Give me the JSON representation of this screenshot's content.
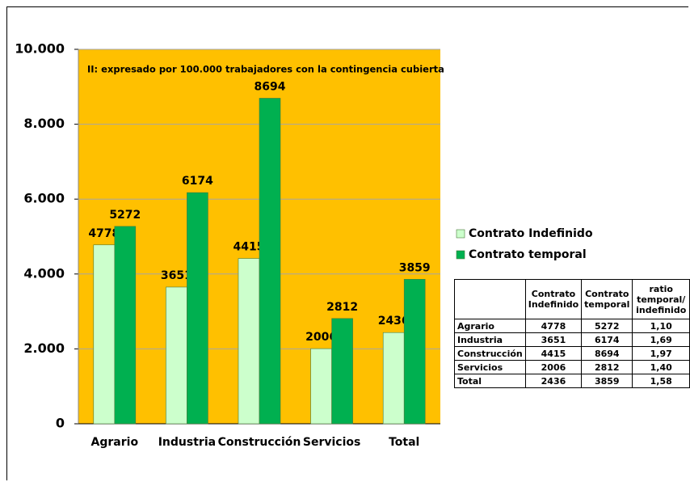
{
  "chart_data": {
    "type": "bar",
    "annotation": "II: expresado por 100.000 trabajadores con la contingencia cubierta",
    "categories": [
      "Agrario",
      "Industria",
      "Construcción",
      "Servicios",
      "Total"
    ],
    "series": [
      {
        "name": "Contrato Indefinido",
        "color": "#ccffcc",
        "values": [
          4778,
          3651,
          4415,
          2006,
          2436
        ]
      },
      {
        "name": "Contrato temporal",
        "color": "#00b050",
        "values": [
          5272,
          6174,
          8694,
          2812,
          3859
        ]
      }
    ],
    "ylim": [
      0,
      10000
    ],
    "yticks": [
      0,
      {
        "value": 2000,
        "label": "2.000"
      },
      {
        "value": 4000,
        "label": "4.000"
      },
      {
        "value": 6000,
        "label": "6.000"
      },
      {
        "value": 8000,
        "label": "8.000"
      },
      {
        "value": 10000,
        "label": "10.000"
      }
    ],
    "grid": true,
    "background": "#ffc000"
  },
  "table": {
    "headers": [
      "Contrato Indefinido",
      "Contrato temporal",
      "ratio temporal/ indefinido"
    ],
    "rows": [
      [
        "Agrario",
        4778,
        5272,
        "1,10"
      ],
      [
        "Industria",
        3651,
        6174,
        "1,69"
      ],
      [
        "Construcción",
        4415,
        8694,
        "1,97"
      ],
      [
        "Servicios",
        2006,
        2812,
        "1,40"
      ],
      [
        "Total",
        2436,
        3859,
        "1,58"
      ]
    ]
  }
}
